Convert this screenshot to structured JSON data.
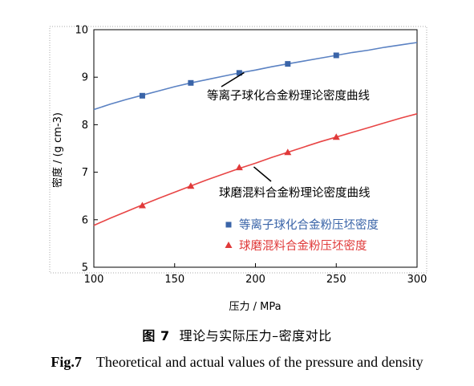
{
  "chart_data": {
    "type": "line",
    "xlabel": "压力 / MPa",
    "ylabel": "密度 / (g cm-3)",
    "xlim": [
      100,
      300
    ],
    "ylim": [
      5,
      10
    ],
    "xticks": [
      100,
      150,
      200,
      250,
      300
    ],
    "yticks": [
      5,
      6,
      7,
      8,
      9,
      10
    ],
    "grid": false,
    "legend_position": "lower-right",
    "annotations": [
      {
        "text": "等离子球化合金粉理论密度曲线",
        "points_to": {
          "x": 193,
          "y": 9.13
        }
      },
      {
        "text": "球磨混料合金粉理论密度曲线",
        "points_to": {
          "x": 198,
          "y": 7.18
        }
      }
    ],
    "series": [
      {
        "name": "等离子球化合金粉压坯密度",
        "kind": "scatter",
        "marker": "square",
        "color": "#3a64a8",
        "x": [
          130,
          160,
          190,
          220,
          250
        ],
        "y": [
          8.61,
          8.88,
          9.09,
          9.28,
          9.46
        ]
      },
      {
        "name": "球磨混料合金粉压坯密度",
        "kind": "scatter",
        "marker": "triangle",
        "color": "#e03a3a",
        "x": [
          130,
          160,
          190,
          220,
          250
        ],
        "y": [
          6.3,
          6.71,
          7.1,
          7.42,
          7.74
        ]
      },
      {
        "kind": "line",
        "color": "#5b82c3",
        "x": [
          100,
          110,
          120,
          130,
          140,
          150,
          160,
          170,
          180,
          190,
          200,
          210,
          220,
          230,
          240,
          250,
          260,
          270,
          280,
          290,
          300
        ],
        "y": [
          8.32,
          8.43,
          8.53,
          8.62,
          8.71,
          8.8,
          8.88,
          8.95,
          9.02,
          9.09,
          9.15,
          9.22,
          9.28,
          9.34,
          9.4,
          9.46,
          9.52,
          9.57,
          9.63,
          9.68,
          9.73
        ]
      },
      {
        "kind": "line",
        "color": "#e84545",
        "x": [
          100,
          110,
          120,
          130,
          140,
          150,
          160,
          170,
          180,
          190,
          200,
          210,
          220,
          230,
          240,
          250,
          260,
          270,
          280,
          290,
          300
        ],
        "y": [
          5.88,
          6.03,
          6.17,
          6.31,
          6.45,
          6.58,
          6.71,
          6.84,
          6.96,
          7.08,
          7.19,
          7.31,
          7.42,
          7.53,
          7.64,
          7.74,
          7.84,
          7.94,
          8.04,
          8.14,
          8.23
        ]
      }
    ]
  },
  "caption": {
    "cn_number": "图 7",
    "cn_text": "理论与实际压力–密度对比",
    "en_number": "Fig.7",
    "en_text": "Theoretical and actual values of the pressure and density"
  }
}
